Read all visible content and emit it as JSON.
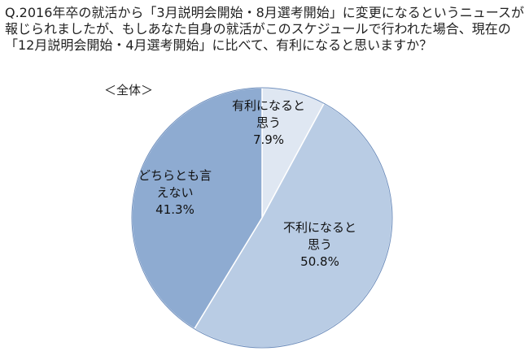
{
  "chart_data": {
    "type": "pie",
    "title": "Q.2016年卒の就活から「3月説明会開始・8月選考開始」に変更になるというニュースが報じられましたが、もしあなた自身の就活がこのスケジュールで行われた場合、現在の「12月説明会開始・4月選考開始」に比べて、有利になると思いますか？",
    "subtitle": "＜全体＞",
    "categories": [
      "有利になると思う",
      "不利になると思う",
      "どちらとも言えない"
    ],
    "values": [
      7.9,
      50.8,
      41.3
    ],
    "value_labels": [
      "7.9%",
      "50.8%",
      "41.3%"
    ],
    "colors": [
      "#dfe7f2",
      "#b9cce4",
      "#8eabd1"
    ]
  }
}
